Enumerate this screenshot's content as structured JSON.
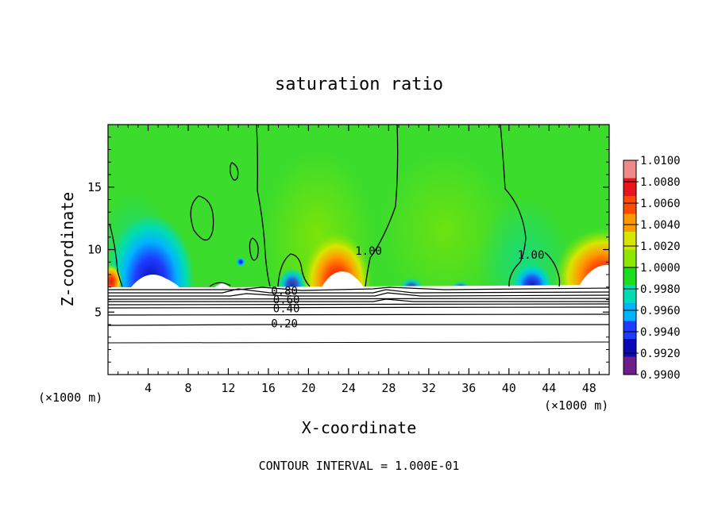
{
  "chart_data": {
    "type": "heatmap",
    "title": "saturation ratio",
    "xlabel": "X-coordinate",
    "ylabel": "Z-coordinate",
    "x_unit_left": "(×1000 m)",
    "x_unit_right": "(×1000 m)",
    "xlim": [
      0,
      50
    ],
    "ylim": [
      0,
      20
    ],
    "x_ticks": [
      "4",
      "8",
      "12",
      "16",
      "20",
      "24",
      "28",
      "32",
      "36",
      "40",
      "44",
      "48"
    ],
    "x_tick_values": [
      4,
      8,
      12,
      16,
      20,
      24,
      28,
      32,
      36,
      40,
      44,
      48
    ],
    "y_ticks": [
      "5",
      "10",
      "15"
    ],
    "y_tick_values": [
      5,
      10,
      15
    ],
    "colorbar": {
      "levels": [
        "1.0100",
        "1.0080",
        "1.0060",
        "1.0040",
        "1.0020",
        "1.0000",
        "0.9980",
        "0.9960",
        "0.9940",
        "0.9920",
        "0.9900"
      ],
      "colors": [
        "#f08a8a",
        "#e8141e",
        "#ff4b00",
        "#ff9900",
        "#d7e600",
        "#8ce600",
        "#1edc1e",
        "#00dcb4",
        "#00b4ff",
        "#1e3cff",
        "#0a0ab4",
        "#6e1e8c"
      ]
    },
    "contour_labels": [
      {
        "text": "1.00",
        "x": 26.0,
        "z": 9.9
      },
      {
        "text": "1.00",
        "x": 42.2,
        "z": 9.6
      },
      {
        "text": "0.80",
        "x": 17.6,
        "z": 6.7
      },
      {
        "text": "0.60",
        "x": 17.8,
        "z": 6.0
      },
      {
        "text": "0.40",
        "x": 17.8,
        "z": 5.3
      },
      {
        "text": "0.20",
        "x": 17.6,
        "z": 4.1
      }
    ],
    "contour_interval_text": "CONTOUR INTERVAL = 1.000E-01"
  },
  "colors": {
    "background_field": "#3cdc2c",
    "below_cloud": "#ffffff"
  }
}
